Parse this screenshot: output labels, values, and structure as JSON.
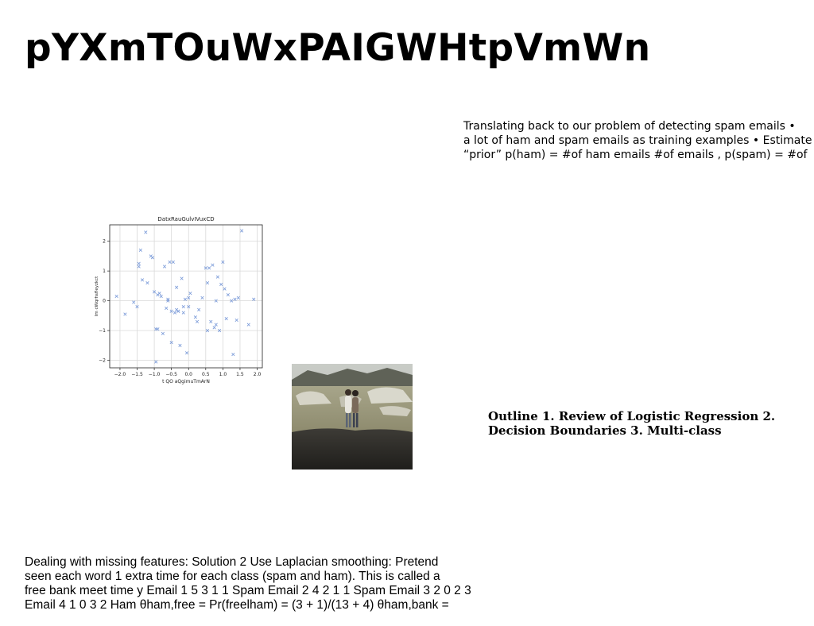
{
  "title": "pYXmTOuWxPAIGWHtpVmWn",
  "para_top": {
    "lines": [
      "Translating back to our problem of detecting spam emails •",
      "a lot of ham and spam emails as training examples • Estimate",
      "“prior” p(ham) = #of ham emails #of emails , p(spam) = #of"
    ]
  },
  "outline": {
    "lines": [
      "Outline 1. Review of Logistic Regression 2.",
      "Decision Boundaries 3. Multi-class"
    ]
  },
  "para_bottom": {
    "lines": [
      "Dealing with missing features: Solution 2 Use Laplacian smoothing: Pretend",
      "seen each word 1 extra time for each class (spam and ham). This is called a",
      "free bank meet time y Email 1 5 3 1 1 Spam Email 2 4 2 1 1 Spam Email 3 2 0 2 3",
      "Email 4 1 0 3 2 Ham θham,free = Pr(freelham) = (3 + 1)/(13 + 4) θham,bank ="
    ]
  },
  "photo": {
    "description_icon": "photo-couple-lakeside"
  },
  "chart_data": {
    "type": "scatter",
    "title": "DatxRauGulvIVuxCD",
    "xlabel": "t QO aQgimuTmArN",
    "ylabel": "Im cWqrhsfleyzkct",
    "xlim": [
      -2.3,
      2.15
    ],
    "ylim": [
      -2.25,
      2.55
    ],
    "xticks": [
      -2.0,
      -1.5,
      -1.0,
      -0.5,
      0.0,
      0.5,
      1.0,
      1.5,
      2.0
    ],
    "xtick_labels": [
      "−2.0",
      "−1.5",
      "−1.0",
      "−0.5",
      "0.0",
      "0.5",
      "1.0",
      "1.5",
      "2.0"
    ],
    "yticks": [
      -2,
      -1,
      0,
      1,
      2
    ],
    "ytick_labels": [
      "−2",
      "−1",
      "0",
      "1",
      "2"
    ],
    "grid": true,
    "marker": "x",
    "color": "#7b9bd9",
    "x": [
      -2.1,
      -1.85,
      -1.6,
      -1.5,
      -1.45,
      -1.45,
      -1.4,
      -1.35,
      -1.25,
      -1.1,
      -1.05,
      -1.0,
      -0.95,
      -0.9,
      -0.9,
      -0.85,
      -0.8,
      -0.75,
      -0.7,
      -0.65,
      -0.6,
      -0.55,
      -0.5,
      -0.45,
      -0.4,
      -0.35,
      -0.3,
      -0.3,
      -0.25,
      -0.2,
      -0.15,
      -0.1,
      -0.05,
      0.0,
      0.05,
      0.2,
      0.25,
      0.3,
      0.4,
      0.5,
      0.55,
      0.6,
      0.65,
      0.7,
      0.75,
      0.8,
      0.8,
      0.85,
      0.9,
      0.95,
      1.0,
      1.05,
      1.1,
      1.15,
      1.25,
      1.3,
      1.35,
      1.4,
      1.55,
      1.75,
      1.9,
      -0.95,
      -0.35,
      0.0,
      -0.6,
      1.45,
      -0.15,
      0.55,
      -0.5,
      -1.2
    ],
    "y": [
      0.15,
      -0.45,
      -0.05,
      -0.2,
      1.15,
      1.25,
      1.7,
      0.7,
      2.3,
      1.5,
      1.45,
      0.3,
      -0.95,
      -0.95,
      0.2,
      0.25,
      0.15,
      -1.1,
      1.15,
      -0.25,
      0.0,
      1.3,
      -0.35,
      1.3,
      -0.4,
      -0.3,
      -0.35,
      -0.35,
      -1.5,
      0.75,
      -0.2,
      0.05,
      -1.75,
      -0.2,
      0.25,
      -0.55,
      -0.7,
      -0.3,
      0.1,
      1.1,
      0.6,
      1.1,
      -0.7,
      1.2,
      -0.9,
      -0.8,
      0.0,
      0.8,
      -1.0,
      0.55,
      1.3,
      0.4,
      -0.6,
      0.2,
      0.0,
      -1.8,
      0.05,
      -0.65,
      2.35,
      -0.8,
      0.05,
      -2.05,
      0.45,
      0.1,
      0.05,
      0.1,
      -0.4,
      -1.0,
      -1.4,
      0.6
    ]
  }
}
